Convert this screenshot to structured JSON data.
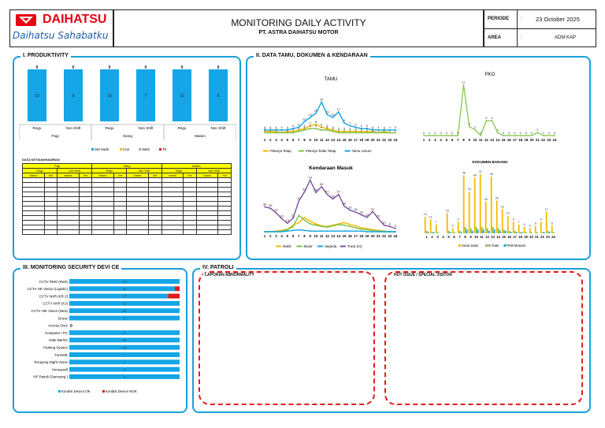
{
  "header": {
    "brand": "DAIHATSU",
    "tagline": "Daihatsu Sahabatku",
    "title": "MONITORING DAILY ACTIVITY",
    "subtitle": "PT. ASTRA DAIHATSU MOTOR",
    "periode_label": "PERIODE",
    "periode_colon": ":",
    "periode_value": "23 October 2025",
    "area_label": "AREA",
    "area_colon": ":",
    "area_value": "ADM KAP",
    "brand_color": "#e60012"
  },
  "sections": {
    "produktivity": "I. PRODUKTIVITY",
    "data_tamu": "II. DATA TAMU, DOKUMEN & KENDARAAN",
    "security": "III. MONITORING SECURITY DEVI CE",
    "patroli": "IV. PATROLI"
  },
  "produktivity": {
    "chart_data": {
      "type": "bar",
      "categories": [
        "Regu",
        "Non Shift",
        "Regu",
        "Non Shift",
        "Regu",
        "Non Shift"
      ],
      "groups": [
        "Pagi",
        "Siang",
        "Malam"
      ],
      "series": [
        {
          "name": "Std Hadir",
          "values": [
            15,
            9,
            15,
            7,
            15,
            6
          ],
          "color": "#14a6e6"
        },
        {
          "name": "Cuti",
          "values": [
            0,
            0,
            0,
            0,
            0,
            0
          ],
          "color": "#f5b800"
        },
        {
          "name": "Sakit",
          "values": [
            0,
            0,
            0,
            0,
            0,
            0
          ],
          "color": "#a5a5a5"
        },
        {
          "name": "TK",
          "values": [
            0,
            0,
            0,
            0,
            0,
            0
          ],
          "color": "#d9272e"
        }
      ]
    },
    "table_title": "DATA KETIDAKHADIRAN",
    "table_groups": [
      "Pagi",
      "Siang",
      "Malam"
    ],
    "table_sub": [
      "Regu",
      "Non Shift",
      "Regu",
      "Non Shift",
      "Regu",
      "Non Shift"
    ],
    "table_cols": [
      "Nama",
      "Ket",
      "Nama",
      "Ket",
      "Nama",
      "Ket",
      "Nama",
      "Ket",
      "Nama",
      "Ket",
      "Nama",
      "Ket"
    ]
  },
  "tamu": {
    "chart_data": {
      "type": "line",
      "title": "TAMU",
      "x": [
        1,
        2,
        3,
        4,
        5,
        6,
        7,
        8,
        9,
        10,
        11,
        12,
        13,
        14,
        15,
        16,
        17,
        18,
        19,
        20,
        21,
        22,
        23,
        24
      ],
      "series": [
        {
          "name": "Pekerja Tetap",
          "values": [
            3,
            3,
            3,
            2,
            3,
            3,
            4,
            5,
            7,
            8,
            6,
            5,
            4,
            3,
            3,
            3,
            3,
            3,
            3,
            3,
            2,
            3,
            2,
            2
          ],
          "color": "#f5b800"
        },
        {
          "name": "Pekerja Tidak Tetap",
          "values": [
            2,
            2,
            2,
            2,
            2,
            2,
            3,
            4,
            5,
            5,
            4,
            4,
            3,
            2,
            2,
            2,
            2,
            2,
            2,
            2,
            2,
            2,
            2,
            2
          ],
          "color": "#7dc242"
        },
        {
          "name": "Tamu Umum",
          "values": [
            4,
            4,
            4,
            4,
            4,
            5,
            6,
            10,
            13,
            16,
            24,
            15,
            13,
            17,
            9,
            7,
            6,
            5,
            5,
            4,
            4,
            4,
            4,
            4
          ],
          "color": "#14a6e6"
        }
      ]
    }
  },
  "pko": {
    "chart_data": {
      "type": "line",
      "title": "PKO",
      "x": [
        1,
        2,
        3,
        4,
        5,
        6,
        7,
        8,
        9,
        10,
        11,
        12,
        13,
        14,
        15,
        16,
        17,
        18,
        19,
        20,
        21,
        22,
        23,
        24
      ],
      "series": [
        {
          "name": "PKO",
          "values": [
            0,
            0,
            0,
            0,
            0,
            0,
            0,
            17,
            3,
            2,
            0,
            5,
            5,
            1,
            0,
            0,
            0,
            0,
            0,
            0,
            1,
            0,
            0,
            0
          ],
          "color": "#7dc242"
        }
      ]
    }
  },
  "kendaraan": {
    "chart_data": {
      "type": "line",
      "title": "Kendaraan Masuk",
      "x": [
        1,
        2,
        3,
        4,
        5,
        6,
        7,
        8,
        9,
        10,
        11,
        12,
        13,
        14,
        15,
        16,
        17,
        18,
        19,
        20,
        21,
        22,
        23,
        24
      ],
      "series": [
        {
          "name": "Mobil",
          "values": [
            0,
            0,
            1,
            2,
            4,
            10,
            14,
            22,
            16,
            12,
            9,
            8,
            10,
            12,
            14,
            11,
            9,
            6,
            5,
            3,
            2,
            1,
            0,
            0
          ],
          "color": "#f5b800"
        },
        {
          "name": "Motor",
          "values": [
            0,
            0,
            0,
            1,
            3,
            8,
            25,
            18,
            12,
            10,
            8,
            7,
            9,
            11,
            10,
            8,
            6,
            4,
            3,
            2,
            1,
            0,
            0,
            0
          ],
          "color": "#7dc242"
        },
        {
          "name": "Sepeda",
          "values": [
            0,
            0,
            0,
            0,
            1,
            2,
            3,
            2,
            1,
            1,
            1,
            1,
            1,
            1,
            1,
            1,
            1,
            1,
            0,
            0,
            0,
            0,
            0,
            0
          ],
          "color": "#14a6e6"
        },
        {
          "name": "Truck (In)",
          "values": [
            38,
            36,
            29,
            20,
            13,
            21,
            47,
            61,
            79,
            60,
            69,
            57,
            50,
            57,
            39,
            33,
            30,
            26,
            22,
            31,
            20,
            10,
            8,
            5
          ],
          "color": "#7b4fa0"
        }
      ]
    }
  },
  "dokumen": {
    "chart_data": {
      "type": "bar",
      "title": "DOKUMEN BARANG",
      "categories": [
        "1",
        "2",
        "3",
        "4",
        "5",
        "6",
        "7",
        "8",
        "9",
        "10",
        "11",
        "12",
        "13",
        "14",
        "15",
        "16",
        "17",
        "18",
        "19",
        "20",
        "21",
        "22",
        "23",
        "24"
      ],
      "series": [
        {
          "name": "Surat Jalan",
          "values": [
            13,
            11,
            7,
            0,
            16,
            4,
            9,
            46,
            33,
            44,
            47,
            25,
            45,
            26,
            19,
            14,
            9,
            7,
            5,
            4,
            6,
            9,
            17,
            6
          ],
          "color": "#f5b800"
        },
        {
          "name": "E-Gate",
          "values": [
            2,
            1,
            1,
            0,
            2,
            1,
            2,
            5,
            4,
            5,
            5,
            4,
            5,
            4,
            3,
            2,
            2,
            1,
            1,
            1,
            1,
            1,
            2,
            1
          ],
          "color": "#7dc242"
        },
        {
          "name": "PKB Manual",
          "values": [
            1,
            1,
            0,
            0,
            1,
            0,
            1,
            3,
            2,
            3,
            3,
            2,
            3,
            2,
            2,
            1,
            1,
            1,
            0,
            0,
            0,
            1,
            1,
            0
          ],
          "color": "#14a6e6"
        }
      ]
    }
  },
  "security": {
    "chart_data": {
      "type": "bar",
      "orientation": "horizontal",
      "categories": [
        "CCTV RMG (RnD)",
        "CCTV HK Vision (Logistic)",
        "CCTV NVR (KR 2)",
        "CCTV NVR (KJ)",
        "CCTV HIK Vision (New)",
        "Drone",
        "Access Door",
        "Komputer / PC",
        "Gate Barrier",
        "Parking System",
        "Turnstile",
        "Teropong Night Vision",
        "Honeywell",
        "HP Patroli (Samsung )"
      ],
      "series": [
        {
          "name": "Kondisi Device OK",
          "values": [
            14,
            22,
            17,
            21,
            63,
            3,
            0,
            9,
            10,
            10,
            7,
            1,
            2,
            2
          ],
          "color": "#14a6e6"
        },
        {
          "name": "Kondisi Device NOK",
          "values": [
            0,
            1,
            2,
            0,
            0,
            0,
            0,
            0,
            0,
            0,
            0,
            0,
            0,
            0
          ],
          "color": "#e01b1b"
        }
      ]
    }
  },
  "patroli": {
    "box1": "LAPORAN ABNORMALITY",
    "box2": "HOT ISSUE / SPECIAL VISITOR"
  }
}
